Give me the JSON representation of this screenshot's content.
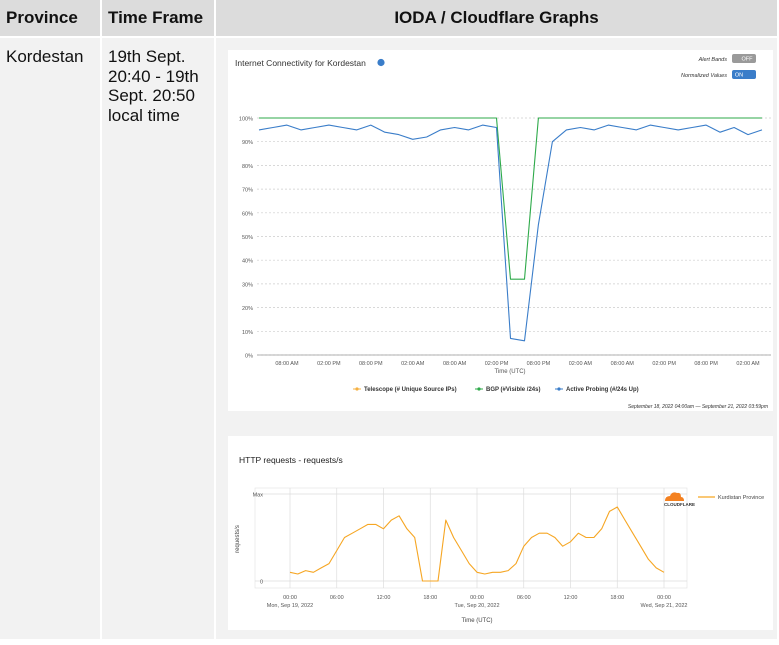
{
  "table": {
    "header": [
      "Province",
      "Time Frame",
      "IODA / Cloudflare Graphs"
    ],
    "rows": [
      [
        "Kordestan",
        "19th Sept. 20:40 - 19th Sept. 20:50 local time"
      ]
    ]
  },
  "chart_data": [
    {
      "type": "line",
      "title": "Internet Connectivity for Kordestan",
      "controls": {
        "alert_bands": "Alert Bands",
        "alert_bands_state": "OFF",
        "normalized_values": "Normalized Values",
        "normalized_values_state": "ON"
      },
      "x_label": "Time (UTC)",
      "date_range": "September 18, 2022 04:00am — September 21, 2022 03:59pm",
      "categories": [
        null,
        null,
        "08:00 AM",
        null,
        null,
        "02:00 PM",
        null,
        null,
        "08:00 PM",
        null,
        null,
        "02:00 AM",
        null,
        null,
        "08:00 AM",
        null,
        null,
        "02:00 PM",
        null,
        null,
        "08:00 PM",
        null,
        null,
        "02:00 AM",
        null,
        null,
        "08:00 AM",
        null,
        null,
        "02:00 PM",
        null,
        null,
        "08:00 PM",
        null,
        null,
        "02:00 AM",
        null
      ],
      "ylim": [
        0,
        100
      ],
      "yticks": [
        {
          "value": 0,
          "label": "0%"
        },
        {
          "value": 10,
          "label": "10%"
        },
        {
          "value": 20,
          "label": "20%"
        },
        {
          "value": 30,
          "label": "30%"
        },
        {
          "value": 40,
          "label": "40%"
        },
        {
          "value": 50,
          "label": "50%"
        },
        {
          "value": 60,
          "label": "60%"
        },
        {
          "value": 70,
          "label": "70%"
        },
        {
          "value": 80,
          "label": "80%"
        },
        {
          "value": 90,
          "label": "90%"
        },
        {
          "value": 100,
          "label": "100%"
        }
      ],
      "grid": true,
      "series": [
        {
          "name": "Telescope (# Unique Source IPs)",
          "color": "#f5b041",
          "values": [
            null,
            null,
            null,
            null,
            null,
            null,
            null,
            null,
            null,
            null,
            null,
            null,
            null,
            null,
            null,
            null,
            null,
            null,
            null,
            null,
            null,
            null,
            null,
            null,
            null,
            null,
            null,
            null,
            null,
            null,
            null,
            null,
            null,
            null,
            null,
            null,
            null
          ]
        },
        {
          "name": "BGP (#Visible /24s)",
          "color": "#2eaa4a",
          "values": [
            100,
            100,
            100,
            100,
            100,
            100,
            100,
            100,
            100,
            100,
            100,
            100,
            100,
            100,
            100,
            100,
            100,
            100,
            32,
            32,
            100,
            100,
            100,
            100,
            100,
            100,
            100,
            100,
            100,
            100,
            100,
            100,
            100,
            100,
            100,
            100,
            100
          ]
        },
        {
          "name": "Active Probing (#/24s Up)",
          "color": "#3a7dc9",
          "values": [
            95,
            96,
            97,
            95,
            96,
            97,
            96,
            95,
            97,
            94,
            93,
            91,
            92,
            95,
            96,
            95,
            97,
            96,
            7,
            6,
            55,
            90,
            95,
            96,
            95,
            97,
            96,
            95,
            97,
            96,
            95,
            96,
            97,
            94,
            96,
            93,
            95
          ]
        }
      ]
    },
    {
      "type": "line",
      "title": "HTTP requests - requests/s",
      "y_label": "requests/s",
      "x_label": "Time (UTC)",
      "logo": "CLOUDFLARE",
      "categories": [
        "00:00",
        null,
        null,
        null,
        null,
        null,
        "06:00",
        null,
        null,
        null,
        null,
        null,
        "12:00",
        null,
        null,
        null,
        null,
        null,
        "18:00",
        null,
        null,
        null,
        null,
        null,
        "00:00",
        null,
        null,
        null,
        null,
        null,
        "06:00",
        null,
        null,
        null,
        null,
        null,
        "12:00",
        null,
        null,
        null,
        null,
        null,
        "18:00",
        null,
        null,
        null,
        null,
        null,
        "00:00"
      ],
      "dates": [
        "Mon, Sep 19, 2022",
        "Tue, Sep 20, 2022",
        "Wed, Sep 21, 2022"
      ],
      "ylim": [
        0,
        1
      ],
      "yticks": [
        0,
        {
          "value": 1,
          "label": "Max"
        }
      ],
      "grid": true,
      "series": [
        {
          "name": "Kurdistan Province",
          "color": "#f6a623",
          "values": [
            0.1,
            0.08,
            0.12,
            0.1,
            0.15,
            0.2,
            0.35,
            0.5,
            0.55,
            0.6,
            0.65,
            0.65,
            0.6,
            0.7,
            0.75,
            0.6,
            0.5,
            0,
            0,
            0,
            0.7,
            0.5,
            0.35,
            0.2,
            0.1,
            0.08,
            0.1,
            0.1,
            0.12,
            0.2,
            0.4,
            0.5,
            0.55,
            0.55,
            0.5,
            0.4,
            0.45,
            0.55,
            0.5,
            0.5,
            0.6,
            0.8,
            0.85,
            0.7,
            0.55,
            0.4,
            0.25,
            0.15,
            0.1
          ]
        }
      ]
    }
  ]
}
